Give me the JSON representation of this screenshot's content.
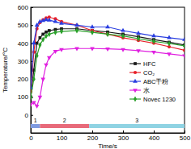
{
  "chart_data": {
    "type": "line",
    "x_label": "Time/s",
    "y_label": "Temperature/°C",
    "x": [
      0,
      10,
      20,
      30,
      40,
      50,
      60,
      80,
      100,
      150,
      200,
      250,
      300,
      350,
      400,
      450,
      500
    ],
    "series": [
      {
        "name": "HFC",
        "color": "#1a1a1a",
        "marker": "square",
        "values": [
          100,
          250,
          400,
          430,
          450,
          462,
          470,
          476,
          480,
          480,
          470,
          462,
          450,
          436,
          420,
          405,
          390
        ]
      },
      {
        "name": "CO₂",
        "color": "#e8202a",
        "marker": "circle",
        "values": [
          130,
          350,
          480,
          515,
          530,
          540,
          545,
          535,
          520,
          500,
          470,
          450,
          430,
          415,
          400,
          380,
          360
        ]
      },
      {
        "name": "ABC干粉",
        "color": "#2a3ee0",
        "marker": "triangle",
        "values": [
          150,
          400,
          500,
          520,
          525,
          530,
          528,
          520,
          510,
          500,
          490,
          490,
          470,
          455,
          440,
          430,
          420
        ]
      },
      {
        "name": "水",
        "color": "#e020e0",
        "marker": "triangle-down",
        "values": [
          60,
          70,
          50,
          100,
          200,
          280,
          320,
          355,
          365,
          370,
          370,
          368,
          365,
          358,
          350,
          340,
          330
        ]
      },
      {
        "name": "Novec 1230",
        "color": "#2aa02a",
        "marker": "diamond",
        "values": [
          100,
          200,
          330,
          390,
          420,
          440,
          450,
          460,
          465,
          470,
          460,
          450,
          440,
          425,
          410,
          398,
          385
        ]
      }
    ],
    "regions": [
      {
        "label": "1",
        "start": 0,
        "end": 30,
        "color": "#7f9be0"
      },
      {
        "label": "2",
        "start": 30,
        "end": 190,
        "color": "#e86a7a"
      },
      {
        "label": "3",
        "start": 190,
        "end": 500,
        "color": "#8fd3e3"
      }
    ],
    "xlim": [
      0,
      500
    ],
    "xticks": [
      0,
      100,
      200,
      300,
      400,
      500
    ],
    "ylim": [
      -100,
      600
    ],
    "yticks": [
      0,
      100,
      200,
      300,
      400,
      500,
      600
    ],
    "legend": "right"
  }
}
